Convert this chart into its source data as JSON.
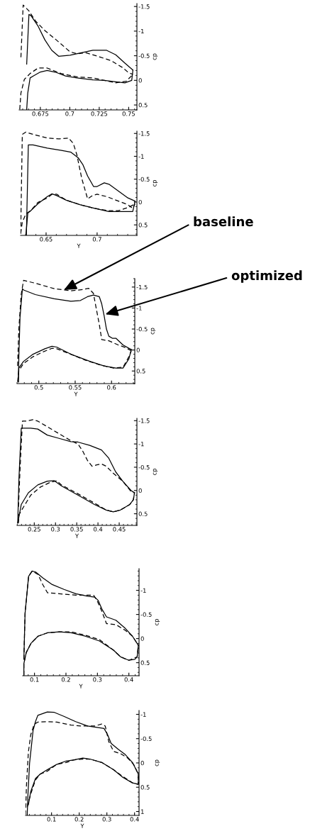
{
  "chart_data": [
    {
      "type": "line",
      "xlabel": null,
      "ylabel": "cp",
      "xlim": [
        0.657,
        0.757
      ],
      "ylim": [
        0.6,
        -1.56
      ],
      "xticks": [
        0.675,
        0.7,
        0.725,
        0.75
      ],
      "yticks": [
        -1.5,
        -1,
        -0.5,
        0,
        0.5
      ],
      "series": [
        {
          "color": "#000000",
          "line_style": "solid",
          "x": [
            0.6634,
            0.6653,
            0.6672,
            0.6731,
            0.6789,
            0.6847,
            0.6905,
            0.7002,
            0.7099,
            0.7196,
            0.7313,
            0.739,
            0.7468,
            0.7536
          ],
          "values": [
            -0.33,
            -1.34,
            -1.31,
            -1.1,
            -0.82,
            -0.61,
            -0.49,
            -0.51,
            -0.56,
            -0.61,
            -0.61,
            -0.52,
            -0.35,
            -0.21
          ]
        },
        {
          "color": "#000000",
          "line_style": "solid",
          "x": [
            0.6634,
            0.6643,
            0.6663,
            0.6692,
            0.675,
            0.6808,
            0.6886,
            0.6963,
            0.706,
            0.7196,
            0.7293,
            0.739,
            0.7468,
            0.7526,
            0.7536
          ],
          "values": [
            0.59,
            0.26,
            -0.05,
            -0.09,
            -0.17,
            -0.2,
            -0.16,
            -0.09,
            -0.05,
            -0.01,
            0.0,
            0.03,
            0.05,
            0.0,
            -0.21
          ]
        },
        {
          "color": "#000000",
          "line_style": "dashed",
          "x": [
            0.6585,
            0.6604,
            0.6653,
            0.6711,
            0.6789,
            0.6886,
            0.7002,
            0.706,
            0.7138,
            0.7235,
            0.7351,
            0.7448,
            0.7497,
            0.7536
          ],
          "values": [
            -0.47,
            -1.53,
            -1.41,
            -1.2,
            -1.01,
            -0.82,
            -0.58,
            -0.54,
            -0.56,
            -0.49,
            -0.4,
            -0.26,
            -0.16,
            -0.12
          ]
        },
        {
          "color": "#000000",
          "line_style": "dashed",
          "x": [
            0.6575,
            0.6585,
            0.6614,
            0.6663,
            0.6731,
            0.6808,
            0.6925,
            0.706,
            0.7196,
            0.7293,
            0.739,
            0.7478,
            0.7536
          ],
          "values": [
            0.59,
            0.26,
            -0.02,
            -0.14,
            -0.25,
            -0.25,
            -0.14,
            -0.07,
            -0.05,
            0.0,
            0.05,
            0.02,
            -0.12
          ]
        }
      ]
    },
    {
      "type": "line",
      "xlabel": "Y",
      "ylabel": "cp",
      "xlim": [
        0.625,
        0.739
      ],
      "ylim": [
        0.73,
        -1.55
      ],
      "xticks": [
        0.65,
        0.7
      ],
      "yticks": [
        -1.5,
        -1,
        -0.5,
        0,
        0.5
      ],
      "series": [
        {
          "color": "#000000",
          "line_style": "solid",
          "x": [
            0.6307,
            0.6326,
            0.6372,
            0.6512,
            0.6651,
            0.6744,
            0.6814,
            0.686,
            0.6907,
            0.6965,
            0.7,
            0.707,
            0.7116,
            0.7209,
            0.7302,
            0.7372
          ],
          "values": [
            0.72,
            -1.25,
            -1.25,
            -1.18,
            -1.13,
            -1.09,
            -0.97,
            -0.82,
            -0.57,
            -0.34,
            -0.34,
            -0.42,
            -0.39,
            -0.24,
            -0.09,
            -0.02
          ]
        },
        {
          "color": "#000000",
          "line_style": "solid",
          "x": [
            0.6302,
            0.6321,
            0.6349,
            0.6419,
            0.6512,
            0.6558,
            0.6605,
            0.6698,
            0.6837,
            0.6977,
            0.7116,
            0.7256,
            0.7349,
            0.7372
          ],
          "values": [
            0.72,
            0.24,
            0.19,
            0.04,
            -0.12,
            -0.18,
            -0.14,
            -0.04,
            0.06,
            0.14,
            0.21,
            0.21,
            0.21,
            -0.02
          ]
        },
        {
          "color": "#000000",
          "line_style": "dashed",
          "x": [
            0.6251,
            0.6267,
            0.6302,
            0.6372,
            0.6512,
            0.6628,
            0.6721,
            0.6767,
            0.6802,
            0.6849,
            0.6907,
            0.6953,
            0.7,
            0.7093,
            0.7209,
            0.7302,
            0.7349,
            0.7372
          ],
          "values": [
            0.69,
            -1.48,
            -1.53,
            -1.48,
            -1.4,
            -1.38,
            -1.4,
            -1.28,
            -1.03,
            -0.52,
            -0.07,
            -0.14,
            -0.17,
            -0.12,
            -0.02,
            0.06,
            0.14,
            0.04
          ]
        },
        {
          "color": "#000000",
          "line_style": "dashed",
          "x": [
            0.6251,
            0.6267,
            0.6302,
            0.6349,
            0.6419,
            0.6512,
            0.6558,
            0.6605,
            0.6698,
            0.6837,
            0.6977,
            0.7116,
            0.7209,
            0.7314,
            0.7372
          ],
          "values": [
            0.69,
            0.44,
            0.26,
            0.19,
            0.01,
            -0.09,
            -0.17,
            -0.17,
            -0.04,
            0.06,
            0.14,
            0.19,
            0.19,
            0.11,
            0.04
          ]
        }
      ]
    },
    {
      "type": "line",
      "xlabel": "Y",
      "ylabel": "cp",
      "xlim": [
        0.47,
        0.632
      ],
      "ylim": [
        0.8,
        -1.7
      ],
      "xticks": [
        0.5,
        0.55,
        0.6
      ],
      "yticks": [
        -1.5,
        -1,
        -0.5,
        0,
        0.5
      ],
      "annotations": [
        {
          "text": "baseline",
          "x": 0.5344,
          "y": -1.43
        },
        {
          "text": "optimized",
          "x": 0.5914,
          "y": -0.85
        }
      ],
      "series": [
        {
          "color": "#000000",
          "line_style": "solid",
          "x": [
            0.4718,
            0.4725,
            0.4741,
            0.4774,
            0.479,
            0.4953,
            0.5213,
            0.5441,
            0.5572,
            0.5669,
            0.5751,
            0.5832,
            0.5865,
            0.5897,
            0.593,
            0.5963,
            0.6011,
            0.606,
            0.6158,
            0.6272
          ],
          "values": [
            0.76,
            0.16,
            -0.77,
            -1.46,
            -1.43,
            -1.32,
            -1.22,
            -1.16,
            -1.18,
            -1.27,
            -1.31,
            -1.27,
            -1.1,
            -0.83,
            -0.5,
            -0.33,
            -0.28,
            -0.28,
            -0.12,
            -0.01
          ]
        },
        {
          "color": "#000000",
          "line_style": "solid",
          "x": [
            0.4718,
            0.4725,
            0.479,
            0.492,
            0.5083,
            0.5181,
            0.5246,
            0.5441,
            0.5702,
            0.5897,
            0.606,
            0.6158,
            0.6239,
            0.6272
          ],
          "values": [
            0.76,
            0.43,
            0.27,
            0.1,
            -0.03,
            -0.09,
            -0.07,
            0.1,
            0.27,
            0.38,
            0.43,
            0.43,
            0.21,
            -0.01
          ]
        },
        {
          "color": "#000000",
          "line_style": "dashed",
          "x": [
            0.4708,
            0.4725,
            0.4757,
            0.479,
            0.4953,
            0.5213,
            0.5441,
            0.5604,
            0.5686,
            0.5751,
            0.5783,
            0.5832,
            0.5865,
            0.5963,
            0.6093,
            0.6191,
            0.6272
          ],
          "values": [
            0.38,
            -0.5,
            -1.32,
            -1.66,
            -1.59,
            -1.46,
            -1.41,
            -1.44,
            -1.47,
            -1.35,
            -1.05,
            -0.61,
            -0.25,
            -0.22,
            -0.12,
            -0.06,
            0.02
          ]
        },
        {
          "color": "#000000",
          "line_style": "dashed",
          "x": [
            0.4708,
            0.4725,
            0.479,
            0.492,
            0.505,
            0.5181,
            0.5246,
            0.5441,
            0.5637,
            0.5832,
            0.6028,
            0.6158,
            0.6239,
            0.6272
          ],
          "values": [
            0.76,
            0.49,
            0.32,
            0.16,
            0.05,
            -0.04,
            -0.03,
            0.1,
            0.24,
            0.35,
            0.43,
            0.41,
            0.16,
            0.02
          ]
        }
      ]
    },
    {
      "type": "line",
      "xlabel": "Y",
      "ylabel": "cp",
      "xlim": [
        0.2094,
        0.4917
      ],
      "ylim": [
        0.75,
        -1.55
      ],
      "xticks": [
        0.25,
        0.3,
        0.35,
        0.4,
        0.45
      ],
      "yticks": [
        -1.5,
        -1,
        -0.5,
        0,
        0.5
      ],
      "series": [
        {
          "color": "#000000",
          "line_style": "solid",
          "x": [
            0.2111,
            0.2139,
            0.2194,
            0.225,
            0.2417,
            0.2583,
            0.2806,
            0.3083,
            0.3361,
            0.3528,
            0.3806,
            0.4083,
            0.425,
            0.4417,
            0.4583,
            0.4778,
            0.4861
          ],
          "values": [
            0.7,
            -0.25,
            -1.34,
            -1.34,
            -1.34,
            -1.32,
            -1.19,
            -1.12,
            -1.05,
            -1.04,
            -0.97,
            -0.87,
            -0.7,
            -0.4,
            -0.2,
            0.0,
            0.05
          ]
        },
        {
          "color": "#000000",
          "line_style": "solid",
          "x": [
            0.2111,
            0.2194,
            0.2361,
            0.2583,
            0.2806,
            0.2972,
            0.3139,
            0.3528,
            0.3917,
            0.4194,
            0.4361,
            0.4528,
            0.475,
            0.4833,
            0.4861
          ],
          "values": [
            0.7,
            0.3,
            0.05,
            -0.12,
            -0.2,
            -0.21,
            -0.1,
            0.1,
            0.3,
            0.42,
            0.46,
            0.42,
            0.3,
            0.2,
            0.05
          ]
        },
        {
          "color": "#000000",
          "line_style": "dashed",
          "x": [
            0.2128,
            0.2167,
            0.2222,
            0.2306,
            0.2472,
            0.2583,
            0.2806,
            0.3083,
            0.3361,
            0.3528,
            0.3639,
            0.375,
            0.3861,
            0.3972,
            0.4083,
            0.4194,
            0.4361,
            0.4583,
            0.4778,
            0.4861
          ],
          "values": [
            0.35,
            -0.5,
            -1.49,
            -1.49,
            -1.52,
            -1.49,
            -1.37,
            -1.22,
            -1.07,
            -1.0,
            -0.85,
            -0.65,
            -0.52,
            -0.55,
            -0.57,
            -0.52,
            -0.37,
            -0.2,
            0.02,
            0.05
          ]
        },
        {
          "color": "#000000",
          "line_style": "dashed",
          "x": [
            0.2128,
            0.2139,
            0.225,
            0.2417,
            0.2639,
            0.2861,
            0.3028,
            0.3139,
            0.3528,
            0.3917,
            0.4194,
            0.4361,
            0.4528,
            0.475,
            0.4833,
            0.4861
          ],
          "values": [
            0.7,
            0.52,
            0.35,
            0.1,
            -0.07,
            -0.17,
            -0.21,
            -0.12,
            0.07,
            0.27,
            0.42,
            0.46,
            0.42,
            0.3,
            0.2,
            0.05
          ]
        }
      ]
    },
    {
      "type": "line",
      "xlabel": "Y",
      "ylabel": "cp",
      "xlim": [
        0.0625,
        0.4323
      ],
      "ylim": [
        0.77,
        -1.45
      ],
      "xticks": [
        0.1,
        0.2,
        0.3,
        0.4
      ],
      "yticks": [
        -1,
        -0.5,
        0,
        0.5
      ],
      "series": [
        {
          "color": "#000000",
          "line_style": "solid",
          "x": [
            0.0662,
            0.07,
            0.0812,
            0.0925,
            0.1038,
            0.1263,
            0.1563,
            0.1938,
            0.2313,
            0.2688,
            0.2913,
            0.3026,
            0.3138,
            0.3288,
            0.3588,
            0.3888,
            0.4113,
            0.4301
          ],
          "values": [
            0.43,
            -0.52,
            -1.29,
            -1.4,
            -1.38,
            -1.26,
            -1.12,
            -1.02,
            -0.93,
            -0.88,
            -0.86,
            -0.79,
            -0.62,
            -0.45,
            -0.38,
            -0.21,
            -0.05,
            0.14
          ]
        },
        {
          "color": "#000000",
          "line_style": "solid",
          "x": [
            0.0662,
            0.0662,
            0.0737,
            0.0887,
            0.1113,
            0.1413,
            0.1788,
            0.2163,
            0.2613,
            0.3063,
            0.3513,
            0.3738,
            0.4001,
            0.4188,
            0.4263,
            0.4301
          ],
          "values": [
            0.76,
            0.52,
            0.29,
            0.1,
            -0.05,
            -0.12,
            -0.14,
            -0.12,
            -0.05,
            0.05,
            0.24,
            0.38,
            0.45,
            0.43,
            0.38,
            0.14
          ]
        },
        {
          "color": "#000000",
          "line_style": "dashed",
          "x": [
            0.0662,
            0.07,
            0.0812,
            0.0925,
            0.1113,
            0.1263,
            0.1413,
            0.1788,
            0.2313,
            0.2688,
            0.2876,
            0.2988,
            0.3138,
            0.3288,
            0.3588,
            0.3888,
            0.4113,
            0.4301
          ],
          "values": [
            0.43,
            -0.52,
            -1.29,
            -1.4,
            -1.33,
            -1.12,
            -0.95,
            -0.93,
            -0.9,
            -0.9,
            -0.9,
            -0.79,
            -0.57,
            -0.31,
            -0.29,
            -0.17,
            -0.05,
            0.14
          ]
        },
        {
          "color": "#000000",
          "line_style": "dashed",
          "x": [
            0.0662,
            0.0662,
            0.0737,
            0.0887,
            0.1113,
            0.1413,
            0.1788,
            0.2163,
            0.2613,
            0.3063,
            0.3513,
            0.3738,
            0.4001,
            0.4263,
            0.4301
          ],
          "values": [
            0.76,
            0.52,
            0.29,
            0.1,
            -0.05,
            -0.12,
            -0.14,
            -0.14,
            -0.07,
            0.02,
            0.24,
            0.38,
            0.45,
            0.38,
            0.14
          ]
        }
      ]
    },
    {
      "type": "line",
      "xlabel": "Y",
      "ylabel": "cp",
      "xlim": [
        0.006,
        0.4162
      ],
      "ylim": [
        1.08,
        -1.08
      ],
      "xticks": [
        0.1,
        0.2,
        0.3,
        0.4
      ],
      "yticks": [
        -1,
        -0.5,
        0,
        0.5,
        1
      ],
      "series": [
        {
          "color": "#000000",
          "line_style": "solid",
          "x": [
            0.012,
            0.0145,
            0.0205,
            0.0333,
            0.0419,
            0.0504,
            0.0846,
            0.1103,
            0.1444,
            0.1872,
            0.2299,
            0.2641,
            0.2897,
            0.3026,
            0.3154,
            0.341,
            0.3667,
            0.3923,
            0.4137
          ],
          "values": [
            1.07,
            0.68,
            0.01,
            -0.67,
            -0.85,
            -0.98,
            -1.05,
            -1.04,
            -0.96,
            -0.85,
            -0.76,
            -0.73,
            -0.71,
            -0.58,
            -0.4,
            -0.28,
            -0.17,
            -0.01,
            0.23
          ]
        },
        {
          "color": "#000000",
          "line_style": "solid",
          "x": [
            0.0162,
            0.0248,
            0.0419,
            0.059,
            0.0846,
            0.1188,
            0.153,
            0.1786,
            0.2128,
            0.2385,
            0.2812,
            0.3239,
            0.3581,
            0.3923,
            0.4137,
            0.4137
          ],
          "values": [
            0.86,
            0.59,
            0.32,
            0.23,
            0.14,
            0.03,
            -0.04,
            -0.06,
            -0.1,
            -0.08,
            -0.01,
            0.14,
            0.3,
            0.41,
            0.44,
            0.23
          ]
        },
        {
          "color": "#000000",
          "line_style": "dashed",
          "x": [
            0.006,
            0.0094,
            0.0162,
            0.0248,
            0.0376,
            0.0504,
            0.0846,
            0.1188,
            0.1701,
            0.2043,
            0.2556,
            0.2812,
            0.294,
            0.3068,
            0.3239,
            0.3496,
            0.3752,
            0.3966,
            0.4137
          ],
          "values": [
            1.07,
            0.46,
            -0.22,
            -0.58,
            -0.8,
            -0.84,
            -0.85,
            -0.84,
            -0.78,
            -0.76,
            -0.76,
            -0.8,
            -0.76,
            -0.44,
            -0.24,
            -0.19,
            -0.1,
            0.03,
            0.23
          ]
        },
        {
          "color": "#000000",
          "line_style": "dashed",
          "x": [
            0.012,
            0.0248,
            0.0419,
            0.059,
            0.0846,
            0.1188,
            0.153,
            0.1786,
            0.2128,
            0.2385,
            0.2812,
            0.3239,
            0.3581,
            0.3923,
            0.4137,
            0.4137
          ],
          "values": [
            0.91,
            0.64,
            0.35,
            0.23,
            0.17,
            0.03,
            -0.01,
            -0.06,
            -0.08,
            -0.08,
            -0.01,
            0.14,
            0.28,
            0.41,
            0.44,
            0.23
          ]
        }
      ]
    }
  ]
}
